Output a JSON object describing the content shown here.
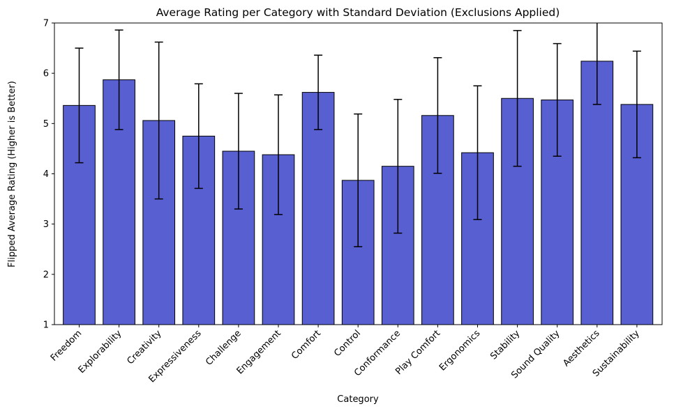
{
  "chart_data": {
    "type": "bar",
    "title": "Average Rating per Category with Standard Deviation (Exclusions Applied)",
    "xlabel": "Category",
    "ylabel": "Flipped Average Rating (Higher is Better)",
    "ylim": [
      1,
      7
    ],
    "yticks": [
      "1",
      "2",
      "3",
      "4",
      "5",
      "6",
      "7"
    ],
    "grid": false,
    "bar_color": "#585fd0",
    "edge_color": "#000000",
    "error_color": "#000000",
    "categories": [
      "Freedom",
      "Explorability",
      "Creativity",
      "Expressiveness",
      "Challenge",
      "Engagement",
      "Comfort",
      "Control",
      "Conformance",
      "Play Comfort",
      "Ergonomics",
      "Stability",
      "Sound Quality",
      "Aesthetics",
      "Sustainability"
    ],
    "values": [
      5.36,
      5.87,
      5.06,
      4.75,
      4.45,
      4.38,
      5.62,
      3.87,
      4.15,
      5.16,
      4.42,
      5.5,
      5.47,
      6.24,
      5.38
    ],
    "errors": [
      1.14,
      0.99,
      1.56,
      1.04,
      1.15,
      1.19,
      0.74,
      1.32,
      1.33,
      1.15,
      1.33,
      1.35,
      1.12,
      0.86,
      1.06
    ]
  }
}
